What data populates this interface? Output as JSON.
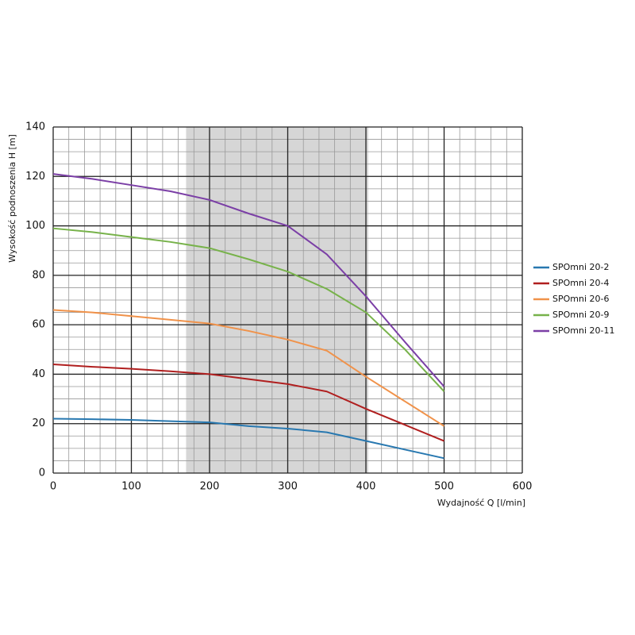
{
  "chart_data": {
    "type": "line",
    "xlabel": "Wydajność Q [l/min]",
    "ylabel": "Wysokość podnoszenia H [m]",
    "x": [
      0,
      50,
      100,
      150,
      200,
      250,
      300,
      350,
      400,
      450,
      500
    ],
    "series": [
      {
        "name": "SPOmni 20-2",
        "color": "#2878b0",
        "values": [
          22,
          21.8,
          21.5,
          21,
          20.5,
          19,
          18,
          16.5,
          13,
          9.5,
          6
        ]
      },
      {
        "name": "SPOmni 20-4",
        "color": "#b01f1f",
        "values": [
          44,
          43,
          42.2,
          41.2,
          40,
          38,
          36,
          33,
          26,
          19.5,
          13
        ]
      },
      {
        "name": "SPOmni 20-6",
        "color": "#f0924a",
        "values": [
          66,
          65,
          63.5,
          62,
          60.5,
          57.5,
          54,
          49.5,
          39,
          29,
          19
        ]
      },
      {
        "name": "SPOmni 20-9",
        "color": "#77b24a",
        "values": [
          99,
          97.5,
          95.5,
          93.5,
          91,
          86.5,
          81.5,
          74.5,
          65,
          50,
          33
        ]
      },
      {
        "name": "SPOmni 20-11",
        "color": "#7b3fa6",
        "values": [
          121,
          119,
          116.5,
          114,
          110.5,
          105,
          100,
          88.5,
          71.5,
          53,
          35
        ]
      }
    ],
    "xlim": [
      0,
      600
    ],
    "ylim": [
      0,
      140
    ],
    "xticks": [
      0,
      100,
      200,
      300,
      400,
      500,
      600
    ],
    "yticks": [
      0,
      20,
      40,
      60,
      80,
      100,
      120,
      140
    ],
    "minor_grid": {
      "x": 20,
      "y": 5
    },
    "highlight_x": [
      170,
      403
    ],
    "grid": true,
    "legend": "right"
  }
}
